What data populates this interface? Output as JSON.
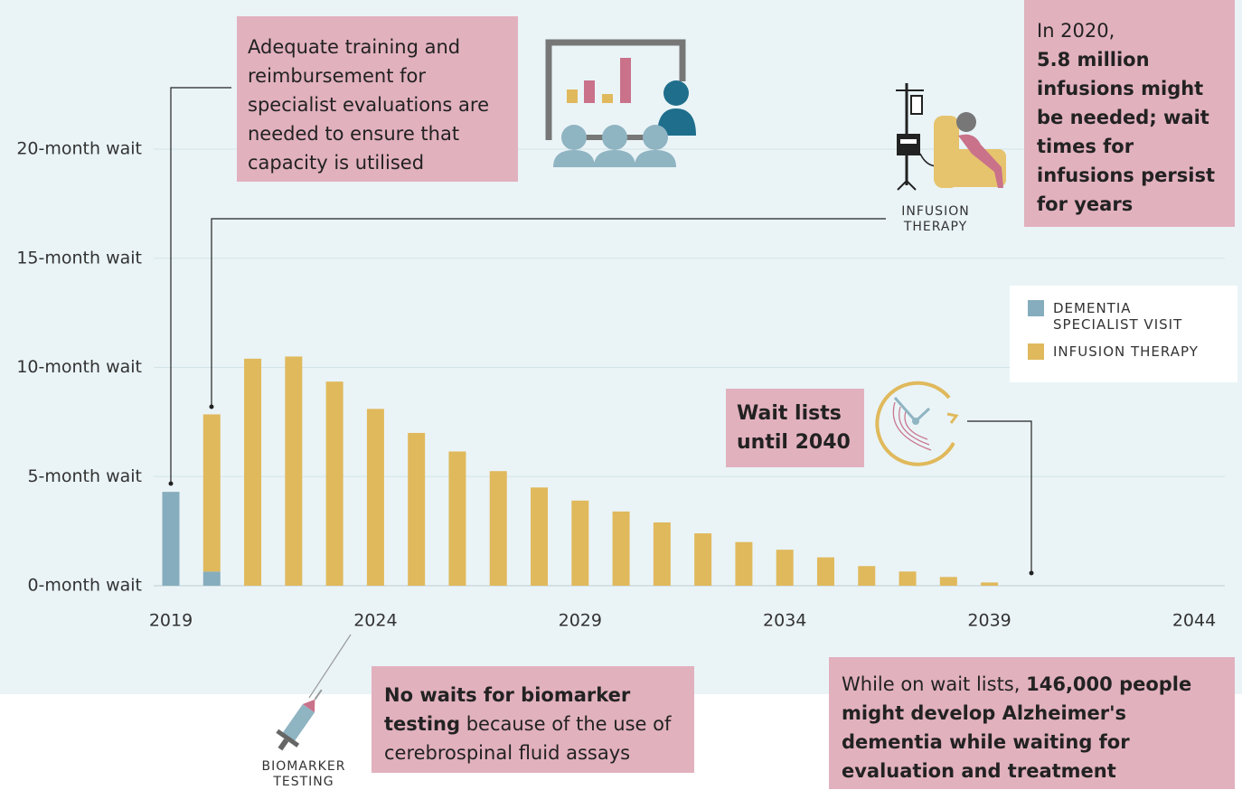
{
  "chart_data": {
    "type": "bar",
    "x": [
      2019,
      2020,
      2021,
      2022,
      2023,
      2024,
      2025,
      2026,
      2027,
      2028,
      2029,
      2030,
      2031,
      2032,
      2033,
      2034,
      2035,
      2036,
      2037,
      2038,
      2039
    ],
    "series": [
      {
        "name": "DEMENTIA SPECIALIST VISIT",
        "color": "#86adbd",
        "values": [
          4.3,
          0.65,
          null,
          null,
          null,
          null,
          null,
          null,
          null,
          null,
          null,
          null,
          null,
          null,
          null,
          null,
          null,
          null,
          null,
          null,
          null
        ]
      },
      {
        "name": "INFUSION THERAPY",
        "color": "#e0b95c",
        "values": [
          null,
          7.2,
          10.4,
          10.5,
          9.35,
          8.1,
          7.0,
          6.15,
          5.25,
          4.5,
          3.9,
          3.4,
          2.9,
          2.4,
          2.0,
          1.65,
          1.3,
          0.9,
          0.65,
          0.4,
          0.15
        ]
      }
    ],
    "stacked": true,
    "xlim": [
      2019,
      2044
    ],
    "xticks": [
      2019,
      2024,
      2029,
      2034,
      2039,
      2044
    ],
    "ylim": [
      0,
      20
    ],
    "yticks": [
      {
        "value": 0,
        "label": "0-month wait"
      },
      {
        "value": 5,
        "label": "5-month wait"
      },
      {
        "value": 10,
        "label": "10-month wait"
      },
      {
        "value": 15,
        "label": "15-month wait"
      },
      {
        "value": 20,
        "label": "20-month wait"
      }
    ],
    "grid": true,
    "legend": "right",
    "annotations": [
      {
        "parts": [
          {
            "text": "Adequate training and reimbursement for specialist evaluations are needed to ensure that capacity is utilised",
            "bold": false
          }
        ]
      },
      {
        "parts": [
          {
            "text": "In 2020,",
            "bold": false
          },
          {
            "text": "5.8 million infusions might be needed; wait times for infusions persist for years",
            "bold": true
          }
        ]
      },
      {
        "parts": [
          {
            "text": "Wait lists until 2040",
            "bold": true
          }
        ]
      },
      {
        "parts": [
          {
            "text": "No waits for biomarker testing",
            "bold": true
          },
          {
            "text": "because of the use of cerebrospinal fluid assays",
            "bold": false
          }
        ]
      },
      {
        "parts": [
          {
            "text": "While on wait lists,",
            "bold": false
          },
          {
            "text": "146,000 people might develop Alzheimer's dementia while waiting for evaluation and treatment",
            "bold": true
          }
        ]
      }
    ],
    "icon_labels": [
      "INFUSION THERAPY",
      "BIOMARKER TESTING"
    ]
  }
}
